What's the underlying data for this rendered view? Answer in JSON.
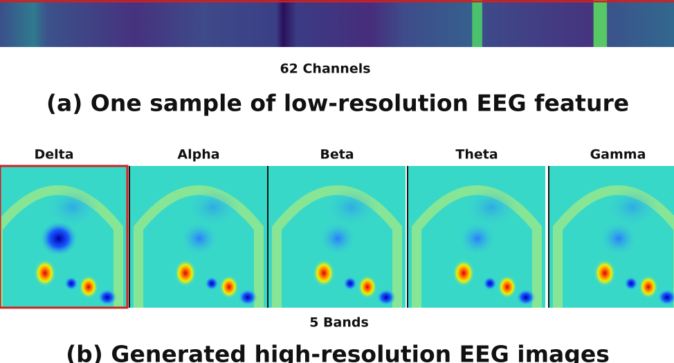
{
  "strip_label": "62 Channels",
  "caption_a": "(a) One sample of low-resolution EEG feature",
  "bands": [
    "Delta",
    "Alpha",
    "Beta",
    "Theta",
    "Gamma"
  ],
  "bands_label": "5 Bands",
  "caption_b": "(b) Generated high-resolution EEG images"
}
